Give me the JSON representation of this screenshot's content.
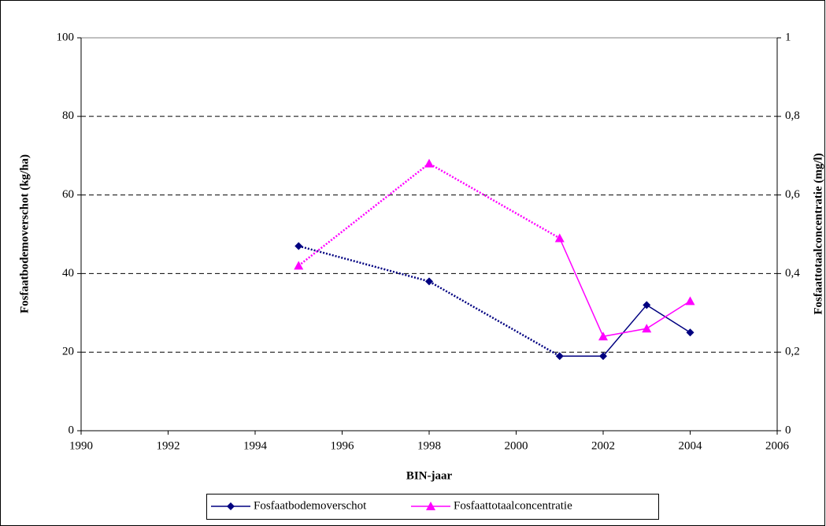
{
  "chart_data": {
    "type": "line",
    "x_label": "BIN-jaar",
    "y_label": "Fosfaatbodemoverschot (kg/ha)",
    "y2_label": "Fosfaattotaalconcentratie (mg/l)",
    "x": [
      1995,
      1998,
      2001,
      2002,
      2003,
      2004
    ],
    "xlim": [
      1990,
      2006
    ],
    "xticks": [
      1990,
      1992,
      1994,
      1996,
      1998,
      2000,
      2002,
      2004,
      2006
    ],
    "ylim": [
      0,
      100
    ],
    "yticks": [
      0,
      20,
      40,
      60,
      80,
      100
    ],
    "y2lim": [
      0,
      1
    ],
    "y2ticks": [
      0,
      {
        "value": 0.2,
        "label": "0,2"
      },
      {
        "value": 0.4,
        "label": "0,4"
      },
      {
        "value": 0.6,
        "label": "0,6"
      },
      {
        "value": 0.8,
        "label": "0,8"
      },
      1
    ],
    "grid": true,
    "legend": "bottom",
    "dashed_until_x": 2001,
    "series": [
      {
        "name": "Fosfaatbodemoverschot",
        "color": "#000080",
        "marker": "diamond",
        "values": [
          47,
          38,
          19,
          19,
          32,
          25
        ]
      },
      {
        "name": "Fosfaattotaalconcentratie",
        "color": "#ff00ff",
        "marker": "triangle",
        "axis": "y2",
        "values": [
          0.42,
          0.68,
          0.49,
          0.24,
          0.26,
          0.33
        ]
      }
    ]
  }
}
